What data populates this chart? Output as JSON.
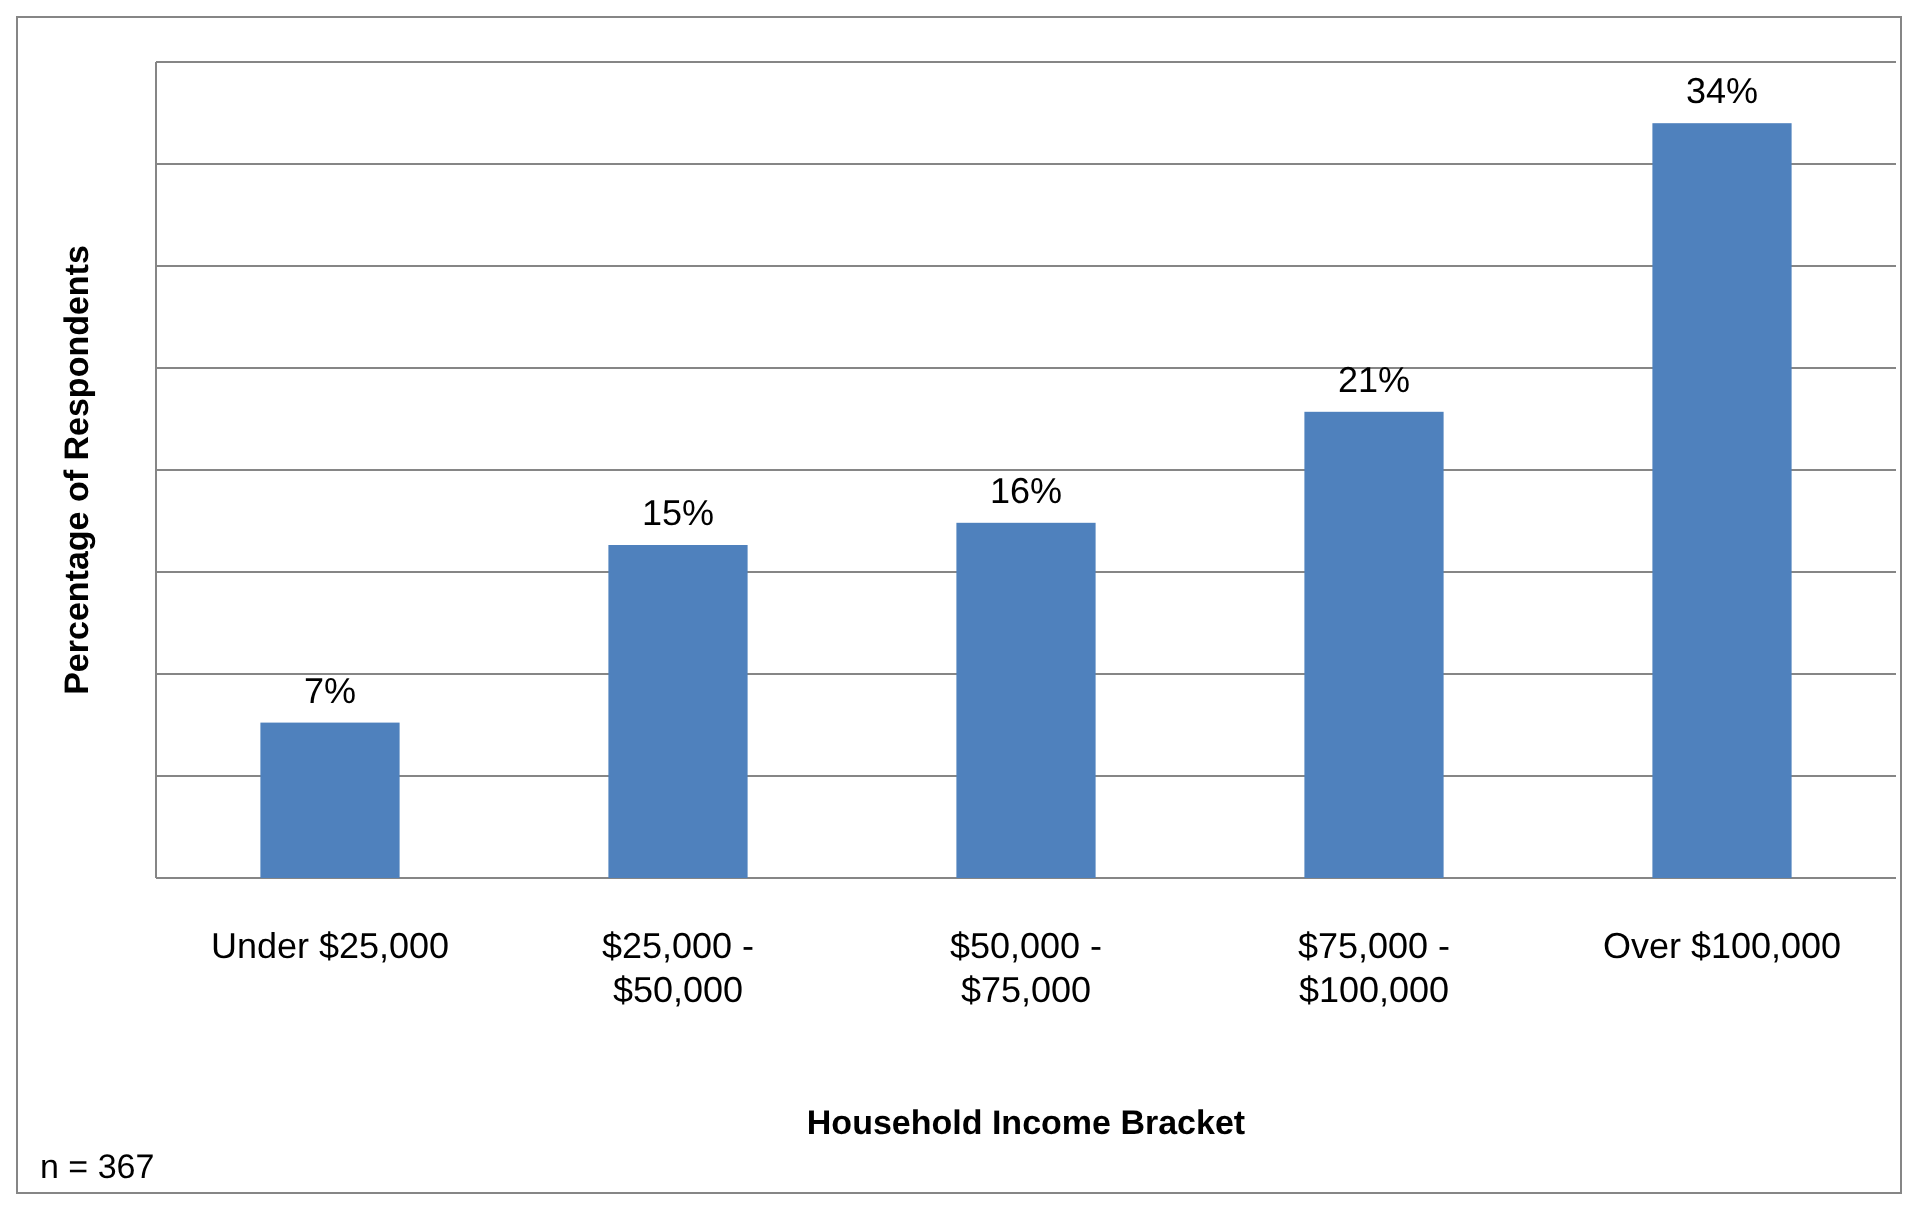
{
  "chart_data": {
    "type": "bar",
    "xlabel": "Household Income Bracket",
    "ylabel": "Percentage of Respondents",
    "categories": [
      "Under $25,000",
      "$25,000 - $50,000",
      "$50,000 - $75,000",
      "$75,000 - $100,000",
      "Over $100,000"
    ],
    "values": [
      7,
      15,
      16,
      21,
      34
    ],
    "color": "#4f81bd",
    "value_labels": [
      "7%",
      "15%",
      "16%",
      "21%",
      "34%"
    ],
    "grid": "y",
    "annotations": [
      "n = 367"
    ]
  }
}
